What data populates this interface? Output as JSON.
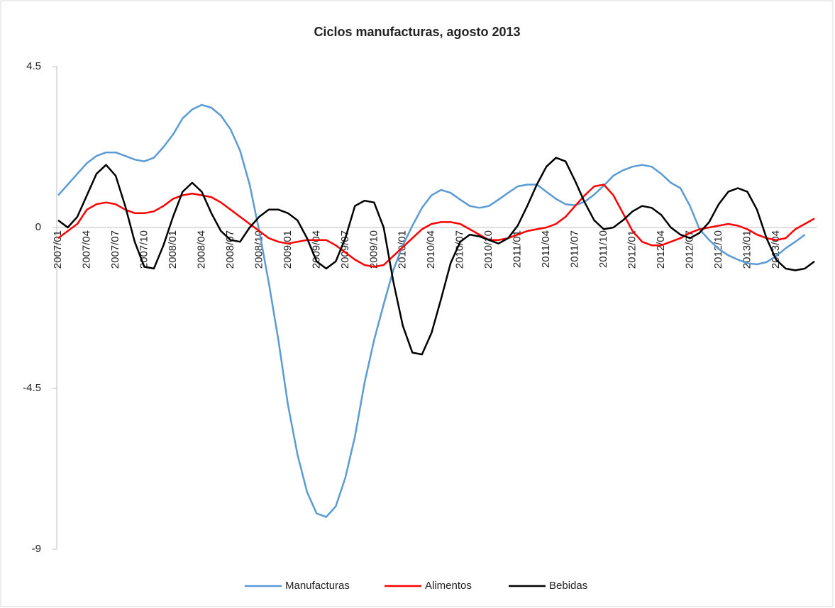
{
  "chart_data": {
    "type": "line",
    "title": "Ciclos manufacturas, agosto 2013",
    "categories": [
      "2007/01",
      null,
      null,
      "2007/04",
      null,
      null,
      "2007/07",
      null,
      null,
      "2007/10",
      null,
      null,
      "2008/01",
      null,
      null,
      "2008/04",
      null,
      null,
      "2008/07",
      null,
      null,
      "2008/10",
      null,
      null,
      "2009/01",
      null,
      null,
      "2009/04",
      null,
      null,
      "2009/07",
      null,
      null,
      "2009/10",
      null,
      null,
      "2010/01",
      null,
      null,
      "2010/04",
      null,
      null,
      "2010/07",
      null,
      null,
      "2010/10",
      null,
      null,
      "2011/01",
      null,
      null,
      "2011/04",
      null,
      null,
      "2011/07",
      null,
      null,
      "2011/10",
      null,
      null,
      "2012/01",
      null,
      null,
      "2012/04",
      null,
      null,
      "2012/07",
      null,
      null,
      "2012/10",
      null,
      null,
      "2013/01",
      null,
      null,
      "2013/04",
      null,
      null,
      null,
      null
    ],
    "series": [
      {
        "name": "Manufacturas",
        "color": "#5b9bd5",
        "values": [
          0.9,
          1.2,
          1.5,
          1.8,
          2.0,
          2.1,
          2.1,
          2.0,
          1.9,
          1.85,
          1.95,
          2.25,
          2.6,
          3.05,
          3.3,
          3.43,
          3.35,
          3.13,
          2.75,
          2.15,
          1.2,
          -0.1,
          -1.55,
          -3.15,
          -4.95,
          -6.35,
          -7.4,
          -8.0,
          -8.1,
          -7.8,
          -7.0,
          -5.85,
          -4.35,
          -3.15,
          -2.15,
          -1.2,
          -0.5,
          0.05,
          0.55,
          0.9,
          1.05,
          0.97,
          0.78,
          0.6,
          0.55,
          0.6,
          0.78,
          0.97,
          1.15,
          1.2,
          1.2,
          1.0,
          0.8,
          0.65,
          0.62,
          0.72,
          0.92,
          1.17,
          1.45,
          1.6,
          1.7,
          1.75,
          1.7,
          1.5,
          1.25,
          1.1,
          0.6,
          -0.05,
          -0.35,
          -0.6,
          -0.78,
          -0.9,
          -1.0,
          -1.03,
          -0.97,
          -0.8,
          -0.58,
          -0.4,
          -0.2,
          null
        ]
      },
      {
        "name": "Alimentos",
        "color": "#ff0000",
        "values": [
          -0.3,
          -0.1,
          0.1,
          0.5,
          0.65,
          0.7,
          0.65,
          0.5,
          0.4,
          0.4,
          0.45,
          0.6,
          0.8,
          0.9,
          0.95,
          0.9,
          0.85,
          0.7,
          0.5,
          0.3,
          0.1,
          -0.1,
          -0.3,
          -0.4,
          -0.45,
          -0.4,
          -0.35,
          -0.35,
          -0.35,
          -0.5,
          -0.7,
          -0.9,
          -1.05,
          -1.1,
          -1.05,
          -0.8,
          -0.55,
          -0.3,
          -0.05,
          0.1,
          0.15,
          0.15,
          0.1,
          -0.05,
          -0.2,
          -0.35,
          -0.35,
          -0.3,
          -0.2,
          -0.1,
          -0.05,
          0.0,
          0.1,
          0.3,
          0.6,
          0.9,
          1.15,
          1.2,
          0.9,
          0.4,
          -0.1,
          -0.4,
          -0.5,
          -0.5,
          -0.4,
          -0.3,
          -0.15,
          -0.05,
          0.0,
          0.05,
          0.1,
          0.05,
          -0.05,
          -0.2,
          -0.3,
          -0.35,
          -0.3,
          -0.05,
          0.1,
          0.25
        ]
      },
      {
        "name": "Bebidas",
        "color": "#000000",
        "values": [
          0.2,
          0.0,
          0.3,
          0.9,
          1.5,
          1.75,
          1.45,
          0.6,
          -0.4,
          -1.1,
          -1.15,
          -0.5,
          0.3,
          1.0,
          1.25,
          1.0,
          0.4,
          -0.1,
          -0.35,
          -0.4,
          0.0,
          0.3,
          0.5,
          0.5,
          0.4,
          0.2,
          -0.3,
          -0.95,
          -1.15,
          -0.95,
          -0.3,
          0.6,
          0.75,
          0.7,
          0.0,
          -1.5,
          -2.75,
          -3.5,
          -3.55,
          -2.95,
          -2.0,
          -1.0,
          -0.4,
          -0.2,
          -0.25,
          -0.35,
          -0.45,
          -0.3,
          0.05,
          0.6,
          1.2,
          1.7,
          1.95,
          1.85,
          1.3,
          0.7,
          0.2,
          -0.05,
          0.0,
          0.2,
          0.45,
          0.6,
          0.55,
          0.35,
          0.0,
          -0.2,
          -0.3,
          -0.15,
          0.15,
          0.65,
          1.0,
          1.1,
          1.0,
          0.5,
          -0.3,
          -0.9,
          -1.15,
          -1.2,
          -1.15,
          -0.95
        ]
      }
    ],
    "ylim": [
      -9,
      4.5
    ],
    "yticks": [
      -9,
      -4.5,
      0,
      4.5
    ],
    "legend": "bottom"
  }
}
